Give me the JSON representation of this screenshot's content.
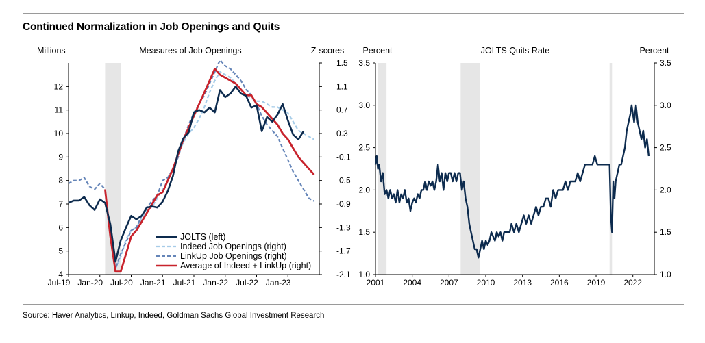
{
  "title": "Continued Normalization in Job Openings and Quits",
  "source": "Source: Haver Analytics, Linkup, Indeed, Goldman Sachs Global Investment Research",
  "colors": {
    "jolts": "#0d2b4e",
    "indeed": "#a6cce8",
    "linkup": "#6585b8",
    "average": "#c8232c",
    "recession": "#e6e6e6"
  },
  "chart_data": [
    {
      "type": "line",
      "title": "Measures of Job Openings",
      "ylabel_left": "Millions",
      "ylabel_right": "Z-scores",
      "ylim_left": [
        4,
        13
      ],
      "ylim_right": [
        -2.1,
        1.5
      ],
      "yticks_left": [
        "4",
        "5",
        "6",
        "7",
        "8",
        "9",
        "10",
        "11",
        "12"
      ],
      "yticks_right": [
        "-2.1",
        "-1.7",
        "-1.3",
        "-0.9",
        "-0.5",
        "-0.1",
        "0.3",
        "0.7",
        "1.1",
        "1.5"
      ],
      "xticks": [
        "Jul-19",
        "Jan-20",
        "Jul-20",
        "Jan-21",
        "Jul-21",
        "Jan-22",
        "Jul-22",
        "Jan-23"
      ],
      "x_range": [
        "2019-07",
        "2023-07"
      ],
      "recession": [
        "2020-02",
        "2020-05"
      ],
      "legend": "bottom-right",
      "series": [
        {
          "name": "JOLTS (left)",
          "axis": "left",
          "x": [
            "2019-07",
            "2019-08",
            "2019-09",
            "2019-10",
            "2019-11",
            "2019-12",
            "2020-01",
            "2020-02",
            "2020-03",
            "2020-04",
            "2020-05",
            "2020-06",
            "2020-07",
            "2020-08",
            "2020-09",
            "2020-10",
            "2020-11",
            "2020-12",
            "2021-01",
            "2021-02",
            "2021-03",
            "2021-04",
            "2021-05",
            "2021-06",
            "2021-07",
            "2021-08",
            "2021-09",
            "2021-10",
            "2021-11",
            "2021-12",
            "2022-01",
            "2022-02",
            "2022-03",
            "2022-04",
            "2022-05",
            "2022-06",
            "2022-07",
            "2022-08",
            "2022-09",
            "2022-10",
            "2022-11",
            "2022-12",
            "2023-01",
            "2023-02",
            "2023-03",
            "2023-04",
            "2023-05"
          ],
          "values": [
            7.05,
            7.15,
            7.15,
            7.3,
            6.95,
            6.75,
            7.2,
            7.05,
            6.15,
            4.55,
            5.45,
            6.0,
            6.5,
            6.35,
            6.5,
            6.85,
            6.9,
            6.85,
            7.1,
            7.55,
            8.2,
            9.25,
            9.8,
            10.05,
            10.9,
            11.0,
            10.9,
            11.1,
            10.9,
            11.85,
            11.55,
            11.7,
            12.0,
            11.7,
            11.6,
            11.1,
            11.2,
            10.1,
            10.7,
            10.5,
            10.8,
            11.25,
            10.55,
            9.95,
            9.75,
            10.1,
            null
          ],
          "color": "#0d2b4e"
        },
        {
          "name": "Indeed Job Openings (right)",
          "axis": "right",
          "x": [
            "2020-02",
            "2020-03",
            "2020-04",
            "2020-05",
            "2020-06",
            "2020-07",
            "2020-08",
            "2020-09",
            "2020-10",
            "2020-11",
            "2020-12",
            "2021-01",
            "2021-02",
            "2021-03",
            "2021-04",
            "2021-05",
            "2021-06",
            "2021-07",
            "2021-08",
            "2021-09",
            "2021-10",
            "2021-11",
            "2021-12",
            "2022-01",
            "2022-02",
            "2022-03",
            "2022-04",
            "2022-05",
            "2022-06",
            "2022-07",
            "2022-08",
            "2022-09",
            "2022-10",
            "2022-11",
            "2022-12",
            "2023-01",
            "2023-02",
            "2023-03",
            "2023-04",
            "2023-05",
            "2023-06"
          ],
          "values": [
            -0.7,
            -1.4,
            -2.0,
            -1.8,
            -1.5,
            -1.35,
            -1.3,
            -1.15,
            -1.0,
            -0.95,
            -0.8,
            -0.65,
            -0.5,
            -0.3,
            -0.05,
            0.15,
            0.3,
            0.4,
            0.55,
            0.75,
            1.0,
            1.2,
            1.35,
            1.3,
            1.25,
            1.15,
            1.05,
            0.95,
            0.9,
            0.85,
            0.85,
            0.8,
            0.75,
            0.75,
            0.7,
            0.65,
            0.5,
            0.35,
            0.3,
            0.25,
            0.2
          ],
          "color": "#a6cce8"
        },
        {
          "name": "LinkUp Job Openings (right)",
          "axis": "right",
          "x": [
            "2019-07",
            "2019-08",
            "2019-09",
            "2019-10",
            "2019-11",
            "2019-12",
            "2020-01",
            "2020-02",
            "2020-03",
            "2020-04",
            "2020-05",
            "2020-06",
            "2020-07",
            "2020-08",
            "2020-09",
            "2020-10",
            "2020-11",
            "2020-12",
            "2021-01",
            "2021-02",
            "2021-03",
            "2021-04",
            "2021-05",
            "2021-06",
            "2021-07",
            "2021-08",
            "2021-09",
            "2021-10",
            "2021-11",
            "2021-12",
            "2022-01",
            "2022-02",
            "2022-03",
            "2022-04",
            "2022-05",
            "2022-06",
            "2022-07",
            "2022-08",
            "2022-09",
            "2022-10",
            "2022-11",
            "2022-12",
            "2023-01",
            "2023-02",
            "2023-03",
            "2023-04",
            "2023-05",
            "2023-06"
          ],
          "values": [
            -0.55,
            -0.5,
            -0.5,
            -0.45,
            -0.6,
            -0.65,
            -0.55,
            -0.65,
            -1.45,
            -2.0,
            -1.75,
            -1.55,
            -1.35,
            -1.3,
            -1.1,
            -0.95,
            -0.85,
            -0.75,
            -0.5,
            -0.45,
            -0.3,
            -0.1,
            0.2,
            0.45,
            0.65,
            0.8,
            0.95,
            1.15,
            1.35,
            1.55,
            1.45,
            1.4,
            1.3,
            1.2,
            1.05,
            0.95,
            0.8,
            0.6,
            0.45,
            0.35,
            0.25,
            0.05,
            -0.15,
            -0.35,
            -0.5,
            -0.65,
            -0.8,
            -0.85
          ],
          "color": "#6585b8"
        },
        {
          "name": "Average of Indeed + LinkUp (right)",
          "axis": "right",
          "x": [
            "2020-02",
            "2020-03",
            "2020-04",
            "2020-05",
            "2020-06",
            "2020-07",
            "2020-08",
            "2020-09",
            "2020-10",
            "2020-11",
            "2020-12",
            "2021-01",
            "2021-02",
            "2021-03",
            "2021-04",
            "2021-05",
            "2021-06",
            "2021-07",
            "2021-08",
            "2021-09",
            "2021-10",
            "2021-11",
            "2021-12",
            "2022-01",
            "2022-02",
            "2022-03",
            "2022-04",
            "2022-05",
            "2022-06",
            "2022-07",
            "2022-08",
            "2022-09",
            "2022-10",
            "2022-11",
            "2022-12",
            "2023-01",
            "2023-02",
            "2023-03",
            "2023-04",
            "2023-05",
            "2023-06"
          ],
          "values": [
            -0.65,
            -1.45,
            -2.05,
            -2.05,
            -1.75,
            -1.45,
            -1.35,
            -1.2,
            -1.05,
            -0.9,
            -0.75,
            -0.7,
            -0.5,
            -0.3,
            -0.05,
            0.2,
            0.4,
            0.6,
            0.8,
            1.0,
            1.2,
            1.4,
            1.3,
            1.25,
            1.2,
            1.15,
            1.05,
            0.95,
            0.95,
            0.8,
            0.75,
            0.65,
            0.55,
            0.45,
            0.3,
            0.2,
            0.05,
            -0.1,
            -0.2,
            -0.3,
            -0.4
          ],
          "color": "#c8232c"
        }
      ]
    },
    {
      "type": "line",
      "title": "JOLTS Quits Rate",
      "ylabel_left": "Percent",
      "ylabel_right": "Percent",
      "ylim": [
        1.0,
        3.5
      ],
      "yticks": [
        "1.0",
        "1.5",
        "2.0",
        "2.5",
        "3.0",
        "3.5"
      ],
      "xticks": [
        "2001",
        "2004",
        "2007",
        "2010",
        "2013",
        "2016",
        "2019",
        "2022"
      ],
      "x_range": [
        2001.0,
        2023.75
      ],
      "recessions": [
        [
          2001.2,
          2001.9
        ],
        [
          2007.95,
          2009.5
        ],
        [
          2020.1,
          2020.3
        ]
      ],
      "series": [
        {
          "name": "JOLTS Quits Rate",
          "x": [
            2001.0,
            2001.1,
            2001.2,
            2001.3,
            2001.45,
            2001.6,
            2001.75,
            2001.9,
            2002.05,
            2002.2,
            2002.35,
            2002.5,
            2002.65,
            2002.8,
            2002.95,
            2003.1,
            2003.25,
            2003.4,
            2003.55,
            2003.7,
            2003.85,
            2004.0,
            2004.15,
            2004.3,
            2004.45,
            2004.6,
            2004.75,
            2004.9,
            2005.05,
            2005.2,
            2005.35,
            2005.5,
            2005.65,
            2005.8,
            2005.95,
            2006.1,
            2006.25,
            2006.4,
            2006.55,
            2006.7,
            2006.85,
            2007.0,
            2007.15,
            2007.3,
            2007.45,
            2007.6,
            2007.75,
            2007.9,
            2008.05,
            2008.2,
            2008.35,
            2008.5,
            2008.65,
            2008.8,
            2008.95,
            2009.1,
            2009.25,
            2009.4,
            2009.55,
            2009.7,
            2009.85,
            2010.0,
            2010.15,
            2010.3,
            2010.45,
            2010.6,
            2010.75,
            2010.9,
            2011.05,
            2011.2,
            2011.35,
            2011.5,
            2011.65,
            2011.8,
            2011.95,
            2012.1,
            2012.3,
            2012.5,
            2012.7,
            2012.9,
            2013.1,
            2013.3,
            2013.5,
            2013.7,
            2013.9,
            2014.1,
            2014.3,
            2014.5,
            2014.7,
            2014.9,
            2015.1,
            2015.3,
            2015.5,
            2015.7,
            2015.9,
            2016.1,
            2016.3,
            2016.5,
            2016.7,
            2016.9,
            2017.1,
            2017.3,
            2017.5,
            2017.7,
            2017.9,
            2018.1,
            2018.3,
            2018.5,
            2018.7,
            2018.9,
            2019.1,
            2019.3,
            2019.5,
            2019.7,
            2019.9,
            2020.0,
            2020.1,
            2020.2,
            2020.3,
            2020.4,
            2020.5,
            2020.6,
            2020.75,
            2020.9,
            2021.05,
            2021.2,
            2021.35,
            2021.5,
            2021.65,
            2021.8,
            2021.9,
            2022.0,
            2022.1,
            2022.25,
            2022.4,
            2022.55,
            2022.7,
            2022.85,
            2023.0,
            2023.15,
            2023.3
          ],
          "values": [
            2.3,
            2.4,
            2.25,
            2.3,
            2.1,
            2.2,
            1.95,
            2.0,
            1.9,
            2.0,
            1.9,
            1.95,
            1.85,
            2.0,
            1.85,
            1.95,
            1.9,
            2.0,
            1.85,
            1.9,
            1.75,
            1.85,
            1.9,
            1.85,
            1.95,
            1.9,
            2.0,
            2.0,
            2.1,
            2.0,
            2.1,
            2.05,
            2.1,
            2.0,
            2.1,
            2.3,
            2.1,
            2.2,
            2.0,
            2.2,
            2.1,
            2.2,
            2.2,
            2.1,
            2.2,
            2.1,
            2.2,
            2.2,
            2.0,
            2.1,
            1.9,
            1.8,
            1.6,
            1.5,
            1.4,
            1.3,
            1.3,
            1.2,
            1.3,
            1.4,
            1.3,
            1.4,
            1.35,
            1.4,
            1.5,
            1.45,
            1.4,
            1.5,
            1.45,
            1.5,
            1.4,
            1.5,
            1.5,
            1.5,
            1.5,
            1.6,
            1.5,
            1.6,
            1.5,
            1.6,
            1.7,
            1.6,
            1.7,
            1.6,
            1.7,
            1.8,
            1.7,
            1.8,
            1.8,
            1.9,
            1.9,
            1.8,
            2.0,
            1.9,
            2.0,
            2.0,
            2.0,
            2.1,
            2.0,
            2.1,
            2.1,
            2.1,
            2.2,
            2.1,
            2.2,
            2.3,
            2.3,
            2.3,
            2.3,
            2.4,
            2.3,
            2.3,
            2.3,
            2.3,
            2.3,
            2.3,
            2.3,
            1.7,
            1.5,
            2.1,
            1.9,
            2.1,
            2.2,
            2.3,
            2.3,
            2.4,
            2.5,
            2.7,
            2.8,
            2.9,
            3.0,
            2.9,
            2.8,
            3.0,
            2.8,
            2.7,
            2.6,
            2.7,
            2.5,
            2.6,
            2.4
          ],
          "color": "#0d2b4e"
        }
      ]
    }
  ]
}
